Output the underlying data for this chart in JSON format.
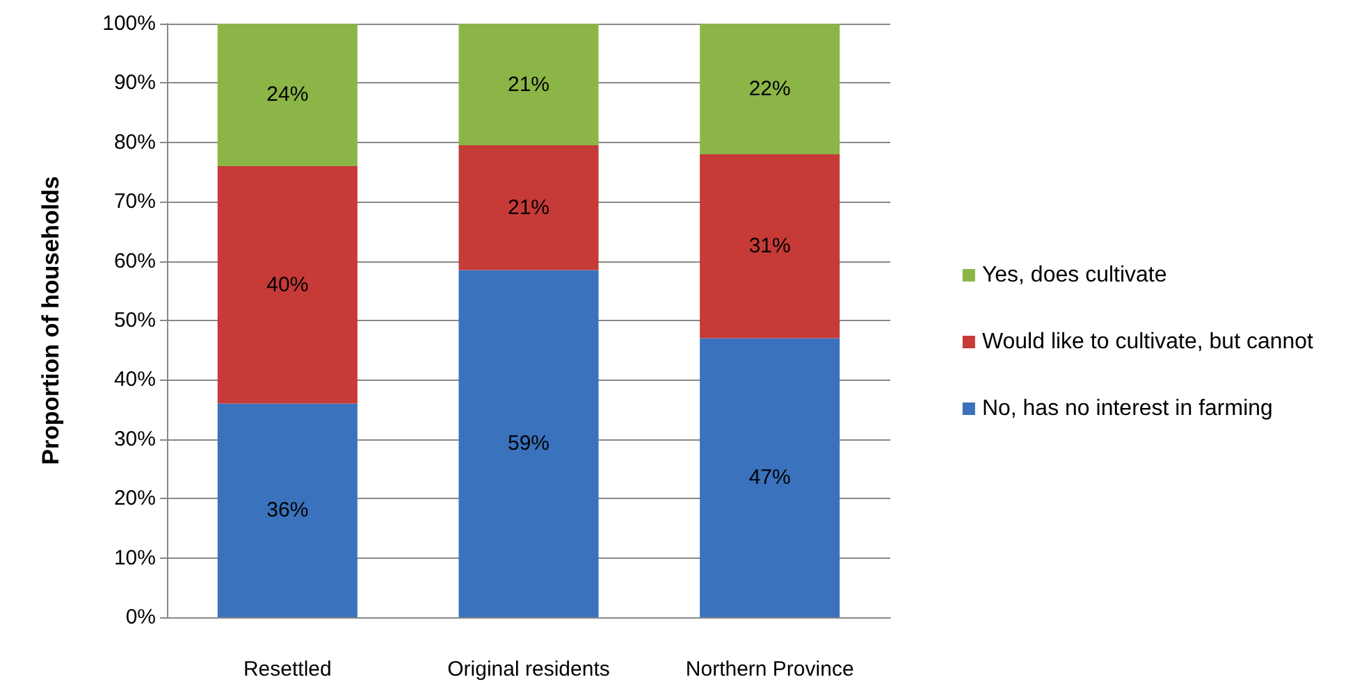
{
  "chart_data": {
    "type": "bar",
    "stacked": true,
    "ylabel": "Proportion of households",
    "categories": [
      "Resettled",
      "Original residents",
      "Northern Province"
    ],
    "series": [
      {
        "name": "No, has no interest in farming",
        "color": "#3a72bd",
        "values": [
          36,
          58.5,
          47
        ],
        "value_labels": [
          "36%",
          "59%",
          "47%"
        ]
      },
      {
        "name": "Would like to cultivate, but cannot",
        "color": "#c63a38",
        "values": [
          40,
          21,
          31
        ],
        "value_labels": [
          "40%",
          "21%",
          "31%"
        ]
      },
      {
        "name": "Yes, does cultivate",
        "color": "#8cb548",
        "values": [
          24,
          20.5,
          22
        ],
        "value_labels": [
          "24%",
          "21%",
          "22%"
        ]
      }
    ],
    "ylim": [
      0,
      100
    ],
    "yticks": [
      {
        "value": 0,
        "label": "0%"
      },
      {
        "value": 10,
        "label": "10%"
      },
      {
        "value": 20,
        "label": "20%"
      },
      {
        "value": 30,
        "label": "30%"
      },
      {
        "value": 40,
        "label": "40%"
      },
      {
        "value": 50,
        "label": "50%"
      },
      {
        "value": 60,
        "label": "60%"
      },
      {
        "value": 70,
        "label": "70%"
      },
      {
        "value": 80,
        "label": "80%"
      },
      {
        "value": 90,
        "label": "90%"
      },
      {
        "value": 100,
        "label": "100%"
      }
    ],
    "grid": "y",
    "legend": "right"
  }
}
